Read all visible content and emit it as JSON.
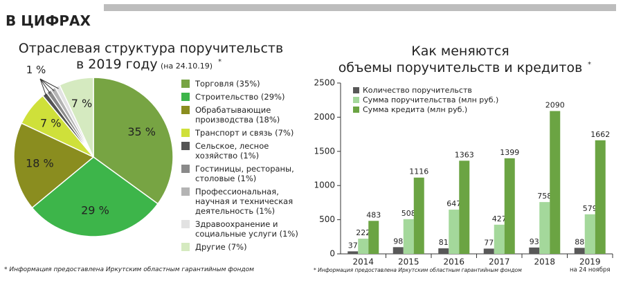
{
  "header": {
    "title": "В ЦИФРАХ"
  },
  "chart_data": [
    {
      "type": "pie",
      "title": [
        "Отраслевая структура поручительств",
        "в 2019 году"
      ],
      "subtitle": "(на 24.10.19)",
      "title_mark": "*",
      "categories": [
        "Торговля (35%)",
        "Строительство (29%)",
        "Обрабатывающие производства (18%)",
        "Транспорт и связь (7%)",
        "Сельское, лесное хозяйство (1%)",
        "Гостиницы, рестораны, столовые (1%)",
        "Профессиональная, научная и техническая деятельность (1%)",
        "Здравоохранение и социальные услуги (1%)",
        "Другие (7%)"
      ],
      "values": [
        35,
        29,
        18,
        7,
        1,
        1,
        1,
        1,
        7
      ],
      "value_labels": [
        "35 %",
        "29 %",
        "18 %",
        "7 %",
        null,
        null,
        null,
        null,
        "7 %"
      ],
      "small_slices_label": "1 %",
      "colors": [
        "#77a443",
        "#3db54a",
        "#8a8d1f",
        "#cfe03a",
        "#545454",
        "#8a8a8a",
        "#b4b4b4",
        "#e2e2e2",
        "#d5eac0"
      ],
      "footnote": "* Информация предоставлена Иркутским областным гарантийным фондом"
    },
    {
      "type": "bar",
      "title": [
        "Как меняются",
        "объемы поручительств и кредитов"
      ],
      "title_mark": "*",
      "categories": [
        "2014",
        "2015",
        "2016",
        "2017",
        "2018",
        "2019"
      ],
      "x_note": "на 24 ноября",
      "series": [
        {
          "name": "Количество поручительств",
          "color": "#585858",
          "values": [
            37,
            98,
            81,
            77,
            93,
            88
          ]
        },
        {
          "name": "Сумма поручительства (млн руб.)",
          "color": "#a4d89b",
          "values": [
            222,
            508,
            647,
            427,
            758,
            579
          ]
        },
        {
          "name": "Сумма кредита (млн руб.)",
          "color": "#6ba443",
          "values": [
            483,
            1116,
            1363,
            1399,
            2090,
            1662
          ]
        }
      ],
      "ylim": [
        0,
        2500
      ],
      "yticks": [
        0,
        500,
        1000,
        1500,
        2000,
        2500
      ],
      "grid": false,
      "footnote": "* Информация предоставлена Иркутским областным гарантийным фондом"
    }
  ]
}
